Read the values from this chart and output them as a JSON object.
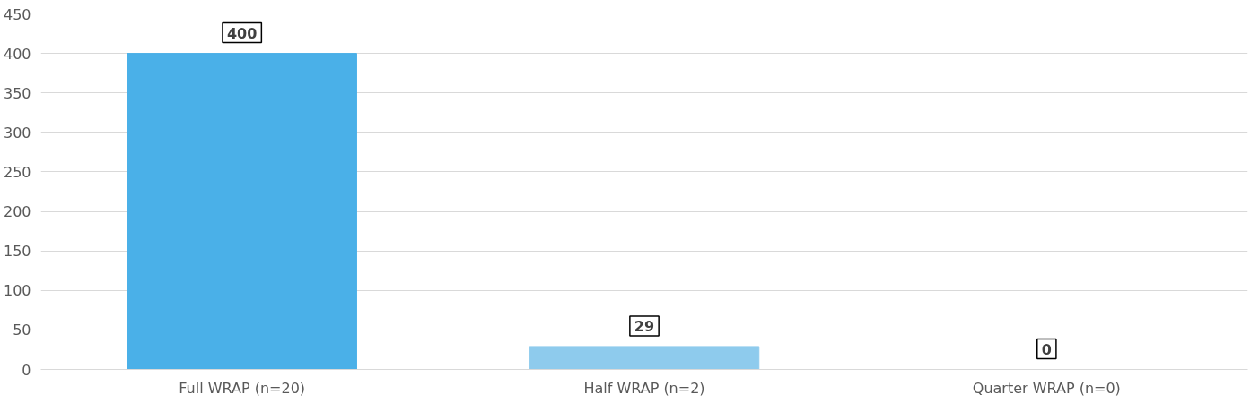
{
  "chart_data": {
    "type": "bar",
    "categories": [
      "Full WRAP (n=20)",
      "Half WRAP (n=2)",
      "Quarter WRAP (n=0)"
    ],
    "values": [
      400,
      29,
      0
    ],
    "colors": [
      "#4ab0e8",
      "#8ecbed",
      "#8ecbed"
    ],
    "ylim": [
      0,
      450
    ],
    "yticks": [
      0,
      50,
      100,
      150,
      200,
      250,
      300,
      350,
      400,
      450
    ],
    "grid": "y",
    "data_labels": true
  }
}
